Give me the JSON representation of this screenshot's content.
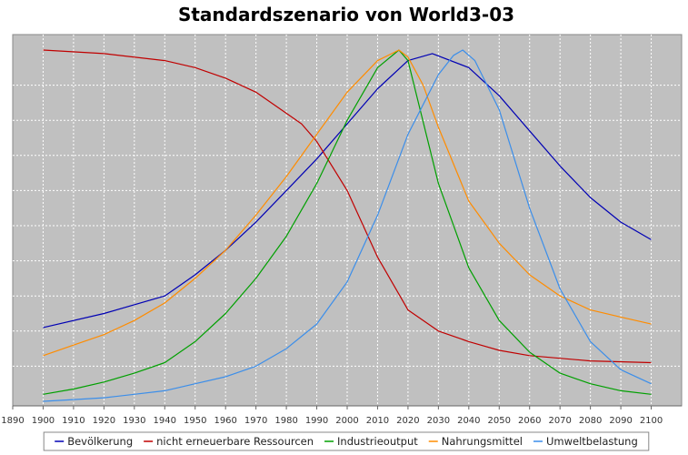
{
  "chart_data": {
    "type": "line",
    "title": "Standardszenario von World3-03",
    "xlabel": "",
    "ylabel": "",
    "xlim": [
      1890,
      2110
    ],
    "ylim": [
      0,
      1
    ],
    "x_ticks": [
      1890,
      1900,
      1910,
      1920,
      1930,
      1940,
      1950,
      1960,
      1970,
      1980,
      1990,
      2000,
      2010,
      2020,
      2030,
      2040,
      2050,
      2060,
      2070,
      2080,
      2090,
      2100
    ],
    "y_tick_labels": false,
    "grid": true,
    "legend_position": "bottom",
    "series": [
      {
        "name": "Bevölkerung",
        "color": "#0000b4",
        "x": [
          1900,
          1920,
          1940,
          1950,
          1960,
          1970,
          1980,
          1990,
          2000,
          2010,
          2020,
          2028,
          2040,
          2050,
          2060,
          2070,
          2080,
          2090,
          2100
        ],
        "y": [
          0.21,
          0.25,
          0.3,
          0.36,
          0.43,
          0.51,
          0.6,
          0.69,
          0.79,
          0.89,
          0.97,
          0.99,
          0.95,
          0.87,
          0.77,
          0.67,
          0.58,
          0.51,
          0.46
        ]
      },
      {
        "name": "nicht erneuerbare Ressourcen",
        "color": "#c00000",
        "x": [
          1900,
          1920,
          1940,
          1950,
          1960,
          1970,
          1980,
          1985,
          1990,
          2000,
          2010,
          2020,
          2030,
          2040,
          2050,
          2060,
          2080,
          2100
        ],
        "y": [
          1.0,
          0.99,
          0.97,
          0.95,
          0.92,
          0.88,
          0.82,
          0.79,
          0.74,
          0.6,
          0.41,
          0.26,
          0.2,
          0.17,
          0.145,
          0.13,
          0.115,
          0.11
        ]
      },
      {
        "name": "Industrieoutput",
        "color": "#00a000",
        "x": [
          1900,
          1910,
          1920,
          1930,
          1940,
          1950,
          1960,
          1970,
          1980,
          1990,
          2000,
          2010,
          2017,
          2020,
          2030,
          2040,
          2050,
          2060,
          2070,
          2080,
          2090,
          2100
        ],
        "y": [
          0.02,
          0.035,
          0.055,
          0.08,
          0.11,
          0.17,
          0.25,
          0.35,
          0.47,
          0.62,
          0.8,
          0.95,
          1.0,
          0.97,
          0.62,
          0.38,
          0.23,
          0.14,
          0.08,
          0.05,
          0.03,
          0.02
        ]
      },
      {
        "name": "Nahrungsmittel",
        "color": "#ff8c00",
        "x": [
          1900,
          1910,
          1920,
          1930,
          1940,
          1950,
          1960,
          1970,
          1980,
          1990,
          2000,
          2010,
          2017,
          2020,
          2025,
          2030,
          2040,
          2050,
          2060,
          2070,
          2080,
          2090,
          2100
        ],
        "y": [
          0.13,
          0.16,
          0.19,
          0.23,
          0.28,
          0.35,
          0.43,
          0.53,
          0.64,
          0.76,
          0.88,
          0.97,
          1.0,
          0.98,
          0.9,
          0.78,
          0.57,
          0.45,
          0.36,
          0.3,
          0.26,
          0.24,
          0.22
        ]
      },
      {
        "name": "Umweltbelastung",
        "color": "#3b8eea",
        "x": [
          1900,
          1910,
          1920,
          1930,
          1940,
          1950,
          1960,
          1970,
          1980,
          1990,
          2000,
          2010,
          2020,
          2030,
          2035,
          2038,
          2042,
          2050,
          2060,
          2070,
          2080,
          2090,
          2100
        ],
        "y": [
          0.0,
          0.005,
          0.01,
          0.02,
          0.03,
          0.05,
          0.07,
          0.1,
          0.15,
          0.22,
          0.34,
          0.53,
          0.76,
          0.93,
          0.985,
          1.0,
          0.97,
          0.83,
          0.55,
          0.32,
          0.17,
          0.09,
          0.05
        ]
      }
    ]
  }
}
